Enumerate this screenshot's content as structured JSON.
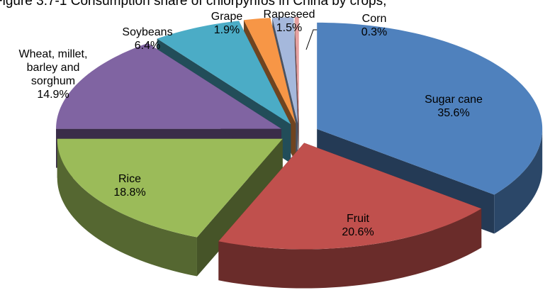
{
  "chart_data": {
    "type": "pie",
    "title": "Figure 3.7-1 Consumption share of chlorpyrifos in China by crops,",
    "categories": [
      "Sugar cane",
      "Fruit",
      "Rice",
      "Wheat, millet, barley and sorghum",
      "Soybeans",
      "Grape",
      "Rapeseed",
      "Corn"
    ],
    "values": [
      35.6,
      20.6,
      18.8,
      14.9,
      6.4,
      1.9,
      1.5,
      0.3
    ],
    "value_labels": [
      "35.6%",
      "20.6%",
      "18.8%",
      "14.9%",
      "6.4%",
      "1.9%",
      "1.5%",
      "0.3%"
    ],
    "colors": [
      "#4f81bd",
      "#c0504d",
      "#9bbb59",
      "#8064a2",
      "#4bacc6",
      "#f79646",
      "#a5b8dc",
      "#e6a0a0"
    ]
  }
}
